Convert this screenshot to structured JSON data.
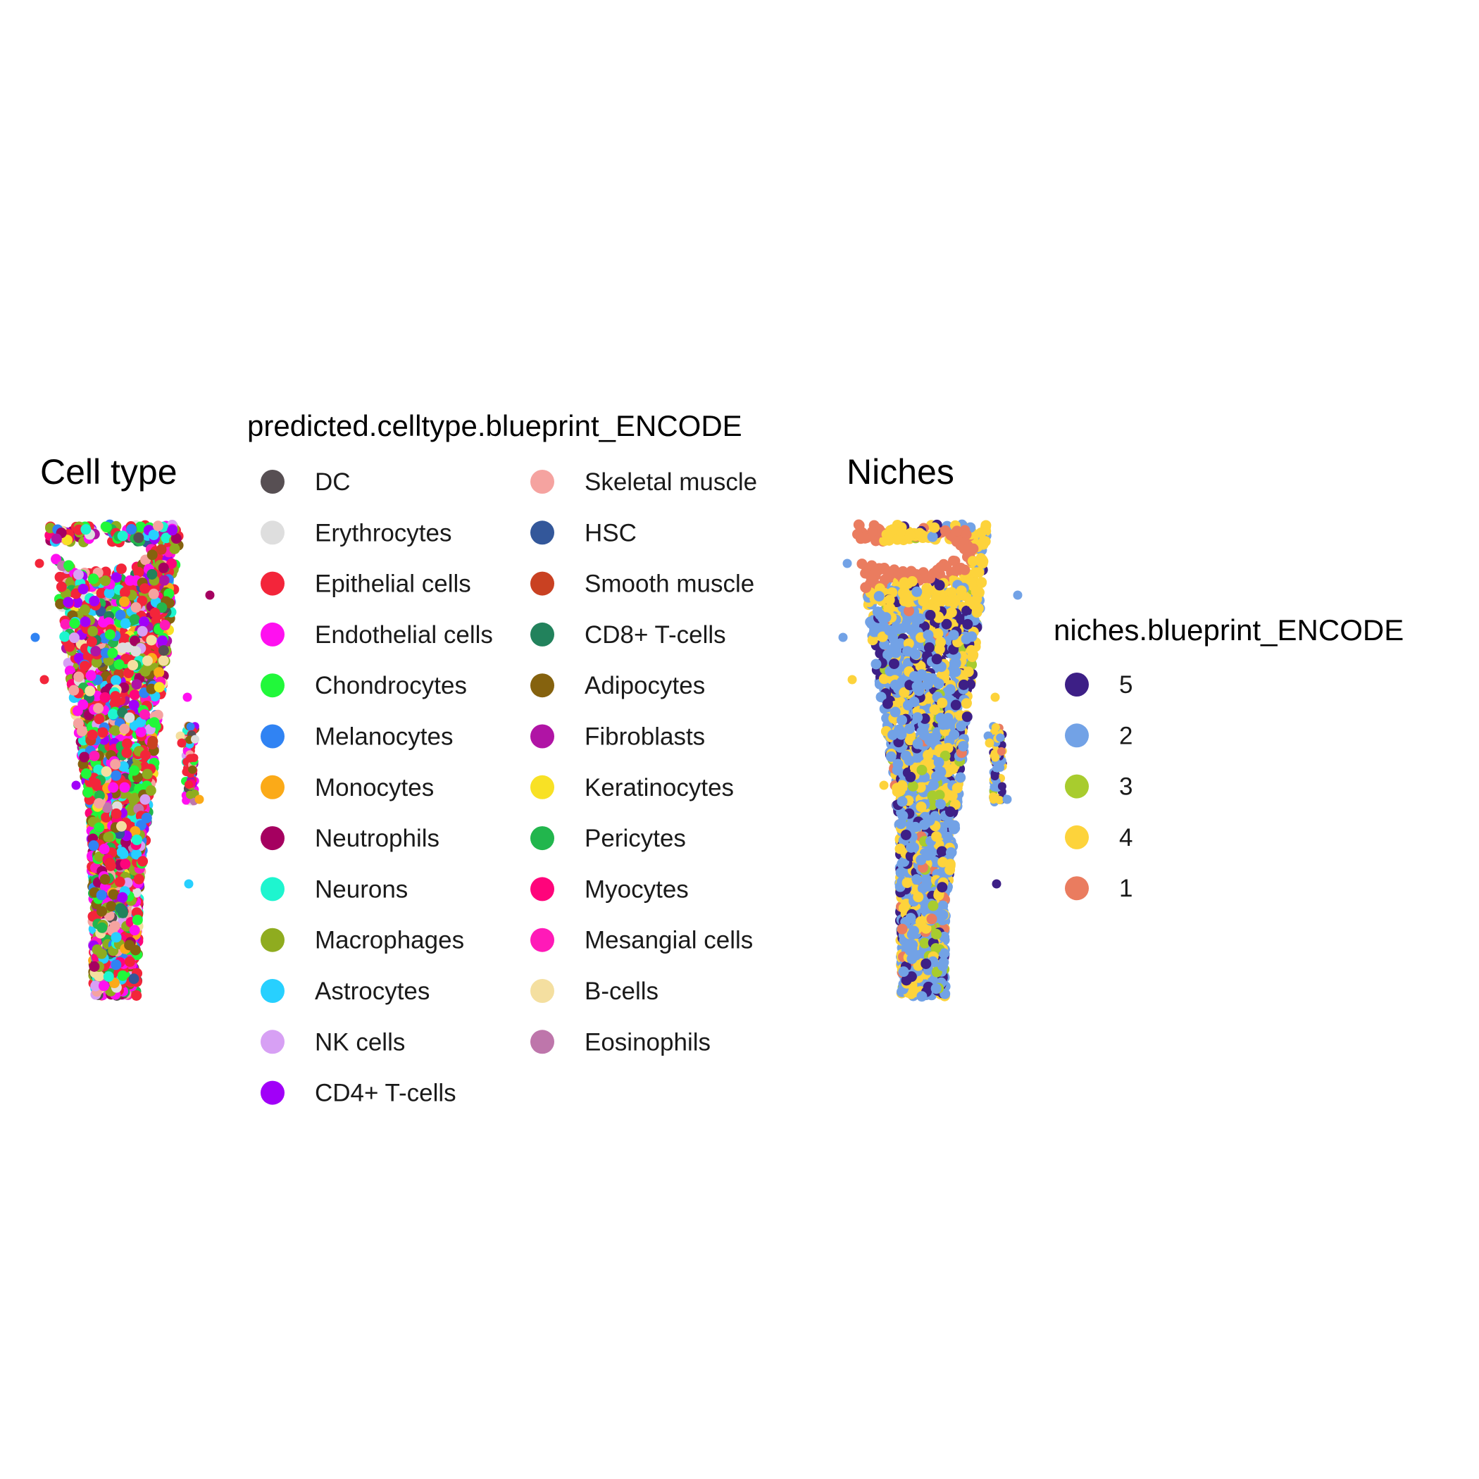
{
  "chart_data": [
    {
      "type": "scatter",
      "title": "Cell type",
      "legend": {
        "title": "predicted.celltype.blueprint_ENCODE",
        "placement": "right",
        "columns": 2,
        "entries": [
          {
            "label": "DC",
            "color": "#574f53"
          },
          {
            "label": "Erythrocytes",
            "color": "#dedede"
          },
          {
            "label": "Epithelial cells",
            "color": "#f3253a"
          },
          {
            "label": "Endothelial cells",
            "color": "#ff10f0"
          },
          {
            "label": "Chondrocytes",
            "color": "#21f83a"
          },
          {
            "label": "Melanocytes",
            "color": "#3083f3"
          },
          {
            "label": "Monocytes",
            "color": "#fbaa18"
          },
          {
            "label": "Neutrophils",
            "color": "#a50060"
          },
          {
            "label": "Neurons",
            "color": "#1ef5cf"
          },
          {
            "label": "Macrophages",
            "color": "#8fac1f"
          },
          {
            "label": "Astrocytes",
            "color": "#27d0ff"
          },
          {
            "label": "NK cells",
            "color": "#d7a0f4"
          },
          {
            "label": "CD4+ T-cells",
            "color": "#a100f8"
          },
          {
            "label": "Skeletal muscle",
            "color": "#f5a3a0"
          },
          {
            "label": "HSC",
            "color": "#33579a"
          },
          {
            "label": "Smooth muscle",
            "color": "#c94122"
          },
          {
            "label": "CD8+ T-cells",
            "color": "#22825c"
          },
          {
            "label": "Adipocytes",
            "color": "#85620e"
          },
          {
            "label": "Fibroblasts",
            "color": "#b014a5"
          },
          {
            "label": "Keratinocytes",
            "color": "#f8e125"
          },
          {
            "label": "Pericytes",
            "color": "#22b64d"
          },
          {
            "label": "Myocytes",
            "color": "#ff047b"
          },
          {
            "label": "Mesangial cells",
            "color": "#ff1ab8"
          },
          {
            "label": "B-cells",
            "color": "#f4dfa0"
          },
          {
            "label": "Eosinophils",
            "color": "#be76ab"
          }
        ]
      },
      "axes": "none",
      "grid": false
    },
    {
      "type": "scatter",
      "title": "Niches",
      "legend": {
        "title": "niches.blueprint_ENCODE",
        "placement": "right",
        "columns": 1,
        "entries": [
          {
            "label": "5",
            "color": "#3d1f86"
          },
          {
            "label": "2",
            "color": "#72a2e6"
          },
          {
            "label": "3",
            "color": "#a8cc2e"
          },
          {
            "label": "4",
            "color": "#fdd33b"
          },
          {
            "label": "1",
            "color": "#ea7c5f"
          }
        ]
      },
      "axes": "none",
      "grid": false
    }
  ]
}
